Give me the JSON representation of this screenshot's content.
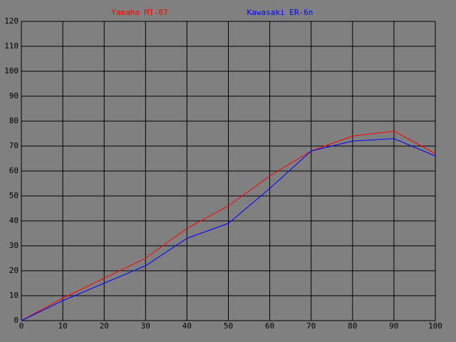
{
  "chart_data": {
    "type": "line",
    "x": [
      0,
      10,
      20,
      30,
      40,
      50,
      60,
      70,
      80,
      90,
      100
    ],
    "series": [
      {
        "name": "Yamaha MT-07",
        "color": "#ff0000",
        "values": [
          0,
          9,
          17,
          25,
          37,
          46,
          58,
          68,
          74,
          76,
          67
        ]
      },
      {
        "name": "Kawasaki ER-6n",
        "color": "#0000ff",
        "values": [
          0,
          8,
          15,
          22,
          33,
          39,
          53,
          68,
          72,
          73,
          66
        ]
      }
    ],
    "xlim": [
      0,
      100
    ],
    "xticks": [
      0,
      10,
      20,
      30,
      40,
      50,
      60,
      70,
      80,
      90,
      100
    ],
    "ylim": [
      0,
      120
    ],
    "yticks": [
      0,
      10,
      20,
      30,
      40,
      50,
      60,
      70,
      80,
      90,
      100,
      110,
      120
    ],
    "grid": true,
    "background": "#808080",
    "grid_color": "#000000"
  }
}
